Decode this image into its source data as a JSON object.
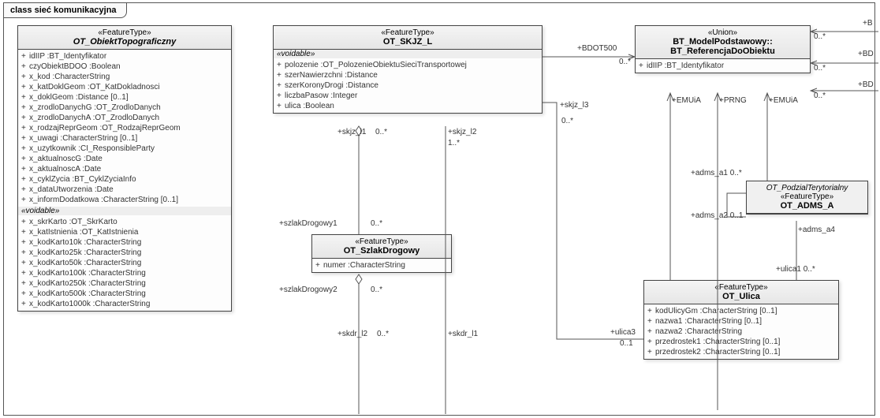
{
  "frame": {
    "title": "class sieć komunikacyjna"
  },
  "class1": {
    "stereo": "«FeatureType»",
    "name": "OT_ObiektTopograficzny",
    "attrs1": [
      "idIIP :BT_Identyfikator",
      "czyObiektBDOO :Boolean",
      "x_kod :CharacterString",
      "x_katDoklGeom :OT_KatDokladnosci",
      "x_doklGeom :Distance [0..1]",
      "x_zrodloDanychG :OT_ZrodloDanych",
      "x_zrodloDanychA :OT_ZrodloDanych",
      "x_rodzajReprGeom :OT_RodzajReprGeom",
      "x_uwagi :CharacterString [0..1]",
      "x_uzytkownik :CI_ResponsibleParty",
      "x_aktualnoscG :Date",
      "x_aktualnoscA :Date",
      "x_cyklZycia :BT_CyklZyciaInfo",
      "x_dataUtworzenia :Date",
      "x_informDodatkowa :CharacterString [0..1]"
    ],
    "voidable": "«voidable»",
    "attrs2": [
      "x_skrKarto :OT_SkrKarto",
      "x_katIstnienia :OT_KatIstnienia",
      "x_kodKarto10k :CharacterString",
      "x_kodKarto25k :CharacterString",
      "x_kodKarto50k :CharacterString",
      "x_kodKarto100k :CharacterString",
      "x_kodKarto250k :CharacterString",
      "x_kodKarto500k :CharacterString",
      "x_kodKarto1000k :CharacterString"
    ]
  },
  "class2": {
    "stereo": "«FeatureType»",
    "name": "OT_SKJZ_L",
    "voidable": "«voidable»",
    "attrs": [
      "polozenie :OT_PolozenieObiektuSieciTransportowej",
      "szerNawierzchni :Distance",
      "szerKoronyDrogi :Distance",
      "liczbaPasow :Integer",
      "ulica :Boolean"
    ]
  },
  "class3": {
    "stereo": "«Union»",
    "name1": "BT_ModelPodstawowy::",
    "name2": "BT_ReferencjaDoObiektu",
    "attrs": [
      "idIIP :BT_Identyfikator"
    ]
  },
  "class4": {
    "stereo": "«FeatureType»",
    "name": "OT_SzlakDrogowy",
    "attrs": [
      "numer :CharacterString"
    ]
  },
  "class5": {
    "from": "OT_PodzialTerytorialny",
    "stereo": "«FeatureType»",
    "name": "OT_ADMS_A"
  },
  "class6": {
    "stereo": "«FeatureType»",
    "name": "OT_Ulica",
    "attrs": [
      "kodUlicyGm :CharacterString [0..1]",
      "nazwa1 :CharacterString [0..1]",
      "nazwa2 :CharacterString",
      "przedrostek1 :CharacterString [0..1]",
      "przedrostek2 :CharacterString [0..1]"
    ]
  },
  "labels": {
    "bdot500": "+BDOT500",
    "bdot500_m": "0..*",
    "skjz_l3": "+skjz_l3",
    "skjz_l3_m": "0..*",
    "emuia1": "+EMUiA",
    "prng": "+PRNG",
    "emuia2": "+EMUiA",
    "b_cut": "+B",
    "bd_cut": "+BD",
    "bdc_cut": "+BD",
    "m0star_a": "0..*",
    "m0star_b": "0..*",
    "m0star_c": "0..*",
    "skjz_l1": "+skjz_l1",
    "skjz_l1_m": "0..*",
    "skjz_l2": "+skjz_l2",
    "skjz_l2_m": "1..*",
    "szlak1": "+szlakDrogowy1",
    "szlak1_m": "0..*",
    "szlak2": "+szlakDrogowy2",
    "szlak2_m": "0..*",
    "skdr_l1": "+skdr_l1",
    "skdr_l2": "+skdr_l2",
    "skdr_m": "0..*",
    "adms_a1": "+adms_a1 0..*",
    "adms_a2": "+adms_a2 0..1",
    "adms_a4": "+adms_a4",
    "ulica1": "+ulica1 0..*",
    "ulica3": "+ulica3",
    "ulica3_m": "0..1"
  },
  "colors": {
    "border": "#444444",
    "headerGrad1": "#f5f5f5",
    "headerGrad2": "#e6e6e6",
    "line": "#666666"
  }
}
